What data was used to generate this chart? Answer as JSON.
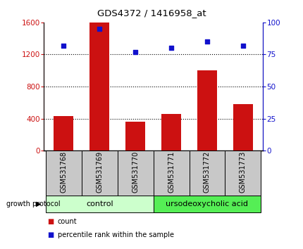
{
  "title": "GDS4372 / 1416958_at",
  "samples": [
    "GSM531768",
    "GSM531769",
    "GSM531770",
    "GSM531771",
    "GSM531772",
    "GSM531773"
  ],
  "counts": [
    430,
    1600,
    360,
    460,
    1000,
    580
  ],
  "percentiles": [
    82,
    95,
    77,
    80,
    85,
    82
  ],
  "bar_color": "#cc1111",
  "dot_color": "#1111cc",
  "ylim_left": [
    0,
    1600
  ],
  "ylim_right": [
    0,
    100
  ],
  "yticks_left": [
    0,
    400,
    800,
    1200,
    1600
  ],
  "yticks_right": [
    0,
    25,
    50,
    75,
    100
  ],
  "grid_values": [
    400,
    800,
    1200
  ],
  "control_label": "control",
  "treatment_label": "ursodeoxycholic acid",
  "control_color": "#ccffcc",
  "treatment_color": "#55ee55",
  "xlabel_area_color": "#c8c8c8",
  "growth_protocol_label": "growth protocol",
  "legend_count_label": "count",
  "legend_pct_label": "percentile rank within the sample"
}
